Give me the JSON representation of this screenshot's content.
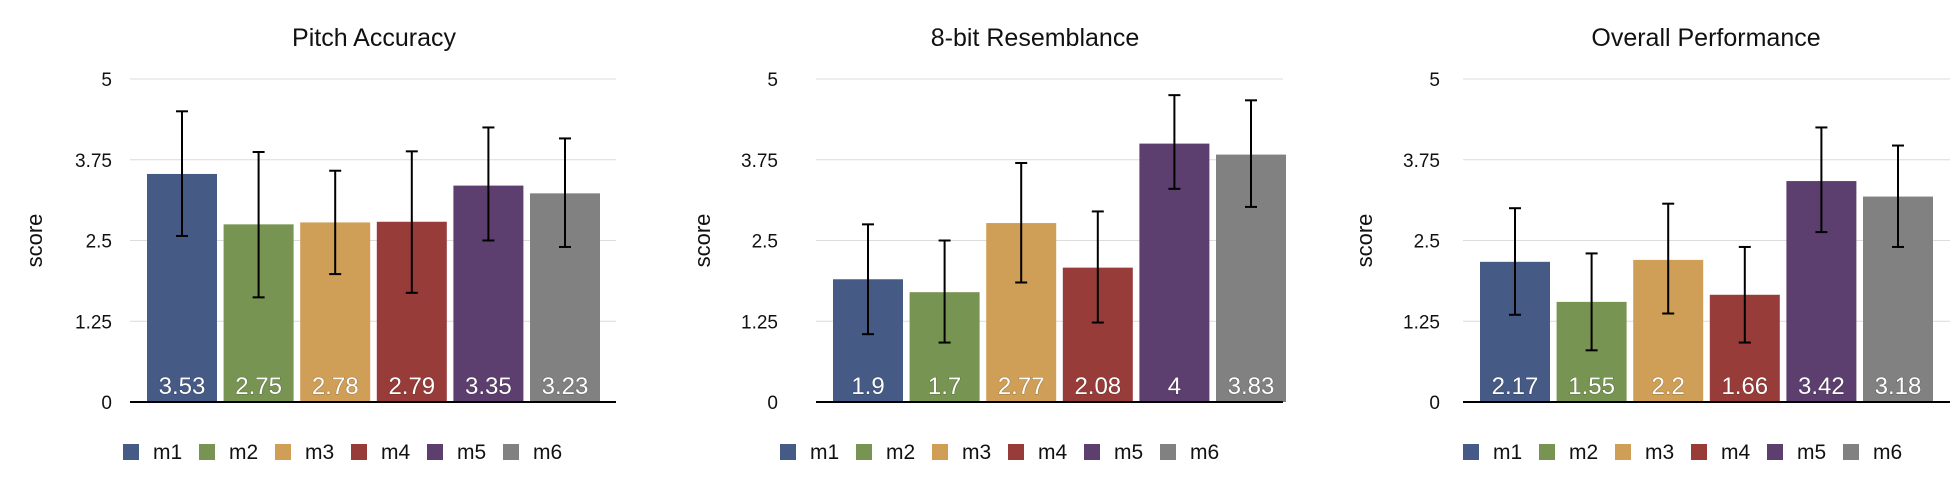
{
  "chart_data": [
    {
      "type": "bar",
      "title": "Pitch Accuracy",
      "xlabel": "",
      "ylabel": "score",
      "ylim": [
        0,
        5
      ],
      "yticks": [
        "0",
        "1.25",
        "2.5",
        "3.75",
        "5"
      ],
      "grid": true,
      "legend_position": "bottom",
      "series": [
        {
          "name": "m1",
          "value": 3.53,
          "label": "3.53",
          "err_low": 2.57,
          "err_high": 4.5,
          "color": "#465a86"
        },
        {
          "name": "m2",
          "value": 2.75,
          "label": "2.75",
          "err_low": 1.62,
          "err_high": 3.87,
          "color": "#789452"
        },
        {
          "name": "m3",
          "value": 2.78,
          "label": "2.78",
          "err_low": 1.98,
          "err_high": 3.58,
          "color": "#cf9f57"
        },
        {
          "name": "m4",
          "value": 2.79,
          "label": "2.79",
          "err_low": 1.69,
          "err_high": 3.88,
          "color": "#983c3a"
        },
        {
          "name": "m5",
          "value": 3.35,
          "label": "3.35",
          "err_low": 2.5,
          "err_high": 4.25,
          "color": "#5d3f6f"
        },
        {
          "name": "m6",
          "value": 3.23,
          "label": "3.23",
          "err_low": 2.4,
          "err_high": 4.08,
          "color": "#818181"
        }
      ]
    },
    {
      "type": "bar",
      "title": "8-bit Resemblance",
      "xlabel": "",
      "ylabel": "score",
      "ylim": [
        0,
        5
      ],
      "yticks": [
        "0",
        "1.25",
        "2.5",
        "3.75",
        "5"
      ],
      "grid": true,
      "legend_position": "bottom",
      "series": [
        {
          "name": "m1",
          "value": 1.9,
          "label": "1.9",
          "err_low": 1.05,
          "err_high": 2.75,
          "color": "#465a86"
        },
        {
          "name": "m2",
          "value": 1.7,
          "label": "1.7",
          "err_low": 0.92,
          "err_high": 2.5,
          "color": "#789452"
        },
        {
          "name": "m3",
          "value": 2.77,
          "label": "2.77",
          "err_low": 1.85,
          "err_high": 3.7,
          "color": "#cf9f57"
        },
        {
          "name": "m4",
          "value": 2.08,
          "label": "2.08",
          "err_low": 1.23,
          "err_high": 2.95,
          "color": "#983c3a"
        },
        {
          "name": "m5",
          "value": 4,
          "label": "4",
          "err_low": 3.3,
          "err_high": 4.75,
          "color": "#5d3f6f"
        },
        {
          "name": "m6",
          "value": 3.83,
          "label": "3.83",
          "err_low": 3.02,
          "err_high": 4.67,
          "color": "#818181"
        }
      ]
    },
    {
      "type": "bar",
      "title": "Overall Performance",
      "xlabel": "",
      "ylabel": "score",
      "ylim": [
        0,
        5
      ],
      "yticks": [
        "0",
        "1.25",
        "2.5",
        "3.75",
        "5"
      ],
      "grid": true,
      "legend_position": "bottom",
      "series": [
        {
          "name": "m1",
          "value": 2.17,
          "label": "2.17",
          "err_low": 1.35,
          "err_high": 3.0,
          "color": "#465a86"
        },
        {
          "name": "m2",
          "value": 1.55,
          "label": "1.55",
          "err_low": 0.8,
          "err_high": 2.3,
          "color": "#789452"
        },
        {
          "name": "m3",
          "value": 2.2,
          "label": "2.2",
          "err_low": 1.37,
          "err_high": 3.07,
          "color": "#cf9f57"
        },
        {
          "name": "m4",
          "value": 1.66,
          "label": "1.66",
          "err_low": 0.92,
          "err_high": 2.4,
          "color": "#983c3a"
        },
        {
          "name": "m5",
          "value": 3.42,
          "label": "3.42",
          "err_low": 2.63,
          "err_high": 4.25,
          "color": "#5d3f6f"
        },
        {
          "name": "m6",
          "value": 3.18,
          "label": "3.18",
          "err_low": 2.4,
          "err_high": 3.97,
          "color": "#818181"
        }
      ]
    }
  ]
}
